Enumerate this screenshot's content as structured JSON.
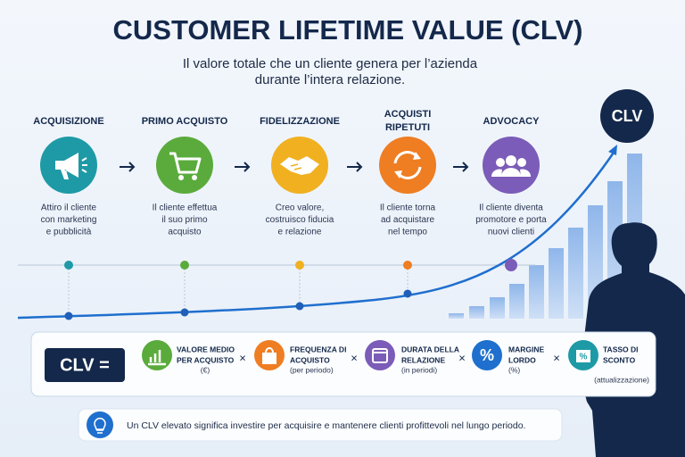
{
  "header": {
    "title": "CUSTOMER LIFETIME VALUE (CLV)",
    "subtitle_lines": [
      "Il valore totale che un cliente genera per l’azienda",
      "durante l’intera relazione."
    ]
  },
  "badge": "CLV",
  "stages": [
    {
      "title_lines": [
        "ACQUISIZIONE"
      ],
      "description_lines": [
        "Attiro il cliente",
        "con marketing",
        "e pubblicità"
      ]
    },
    {
      "title_lines": [
        "PRIMO ACQUISTO"
      ],
      "description_lines": [
        "Il cliente effettua",
        "il suo primo",
        "acquisto"
      ]
    },
    {
      "title_lines": [
        "FIDELIZZAZIONE"
      ],
      "description_lines": [
        "Creo valore,",
        "costruisco fiducia",
        "e relazione"
      ]
    },
    {
      "title_lines": [
        "ACQUISTI",
        "RIPETUTI"
      ],
      "description_lines": [
        "Il cliente torna",
        "ad acquistare",
        "nel tempo"
      ]
    },
    {
      "title_lines": [
        "ADVOCACY"
      ],
      "description_lines": [
        "Il cliente diventa",
        "promotore e porta",
        "nuovi clienti"
      ]
    }
  ],
  "formula": {
    "lhs": "CLV =",
    "terms": [
      {
        "lines": [
          "VALORE MEDIO",
          "PER ACQUISTO"
        ],
        "unit": "(€)"
      },
      {
        "lines": [
          "FREQUENZA DI",
          "ACQUISTO"
        ],
        "unit": "(per periodo)"
      },
      {
        "lines": [
          "DURATA DELLA",
          "RELAZIONE"
        ],
        "unit": "(in periodi)"
      },
      {
        "lines": [
          "MARGINE",
          "LORDO"
        ],
        "unit": "(%)"
      },
      {
        "lines": [
          "TASSO DI",
          "SCONTO"
        ],
        "unit": "(attualizzazione)"
      }
    ],
    "operators": [
      "×",
      "×",
      "×",
      "×"
    ]
  },
  "note": "Un CLV elevato significa investire per acquisire e mantenere clienti profittevoli nel lungo periodo."
}
